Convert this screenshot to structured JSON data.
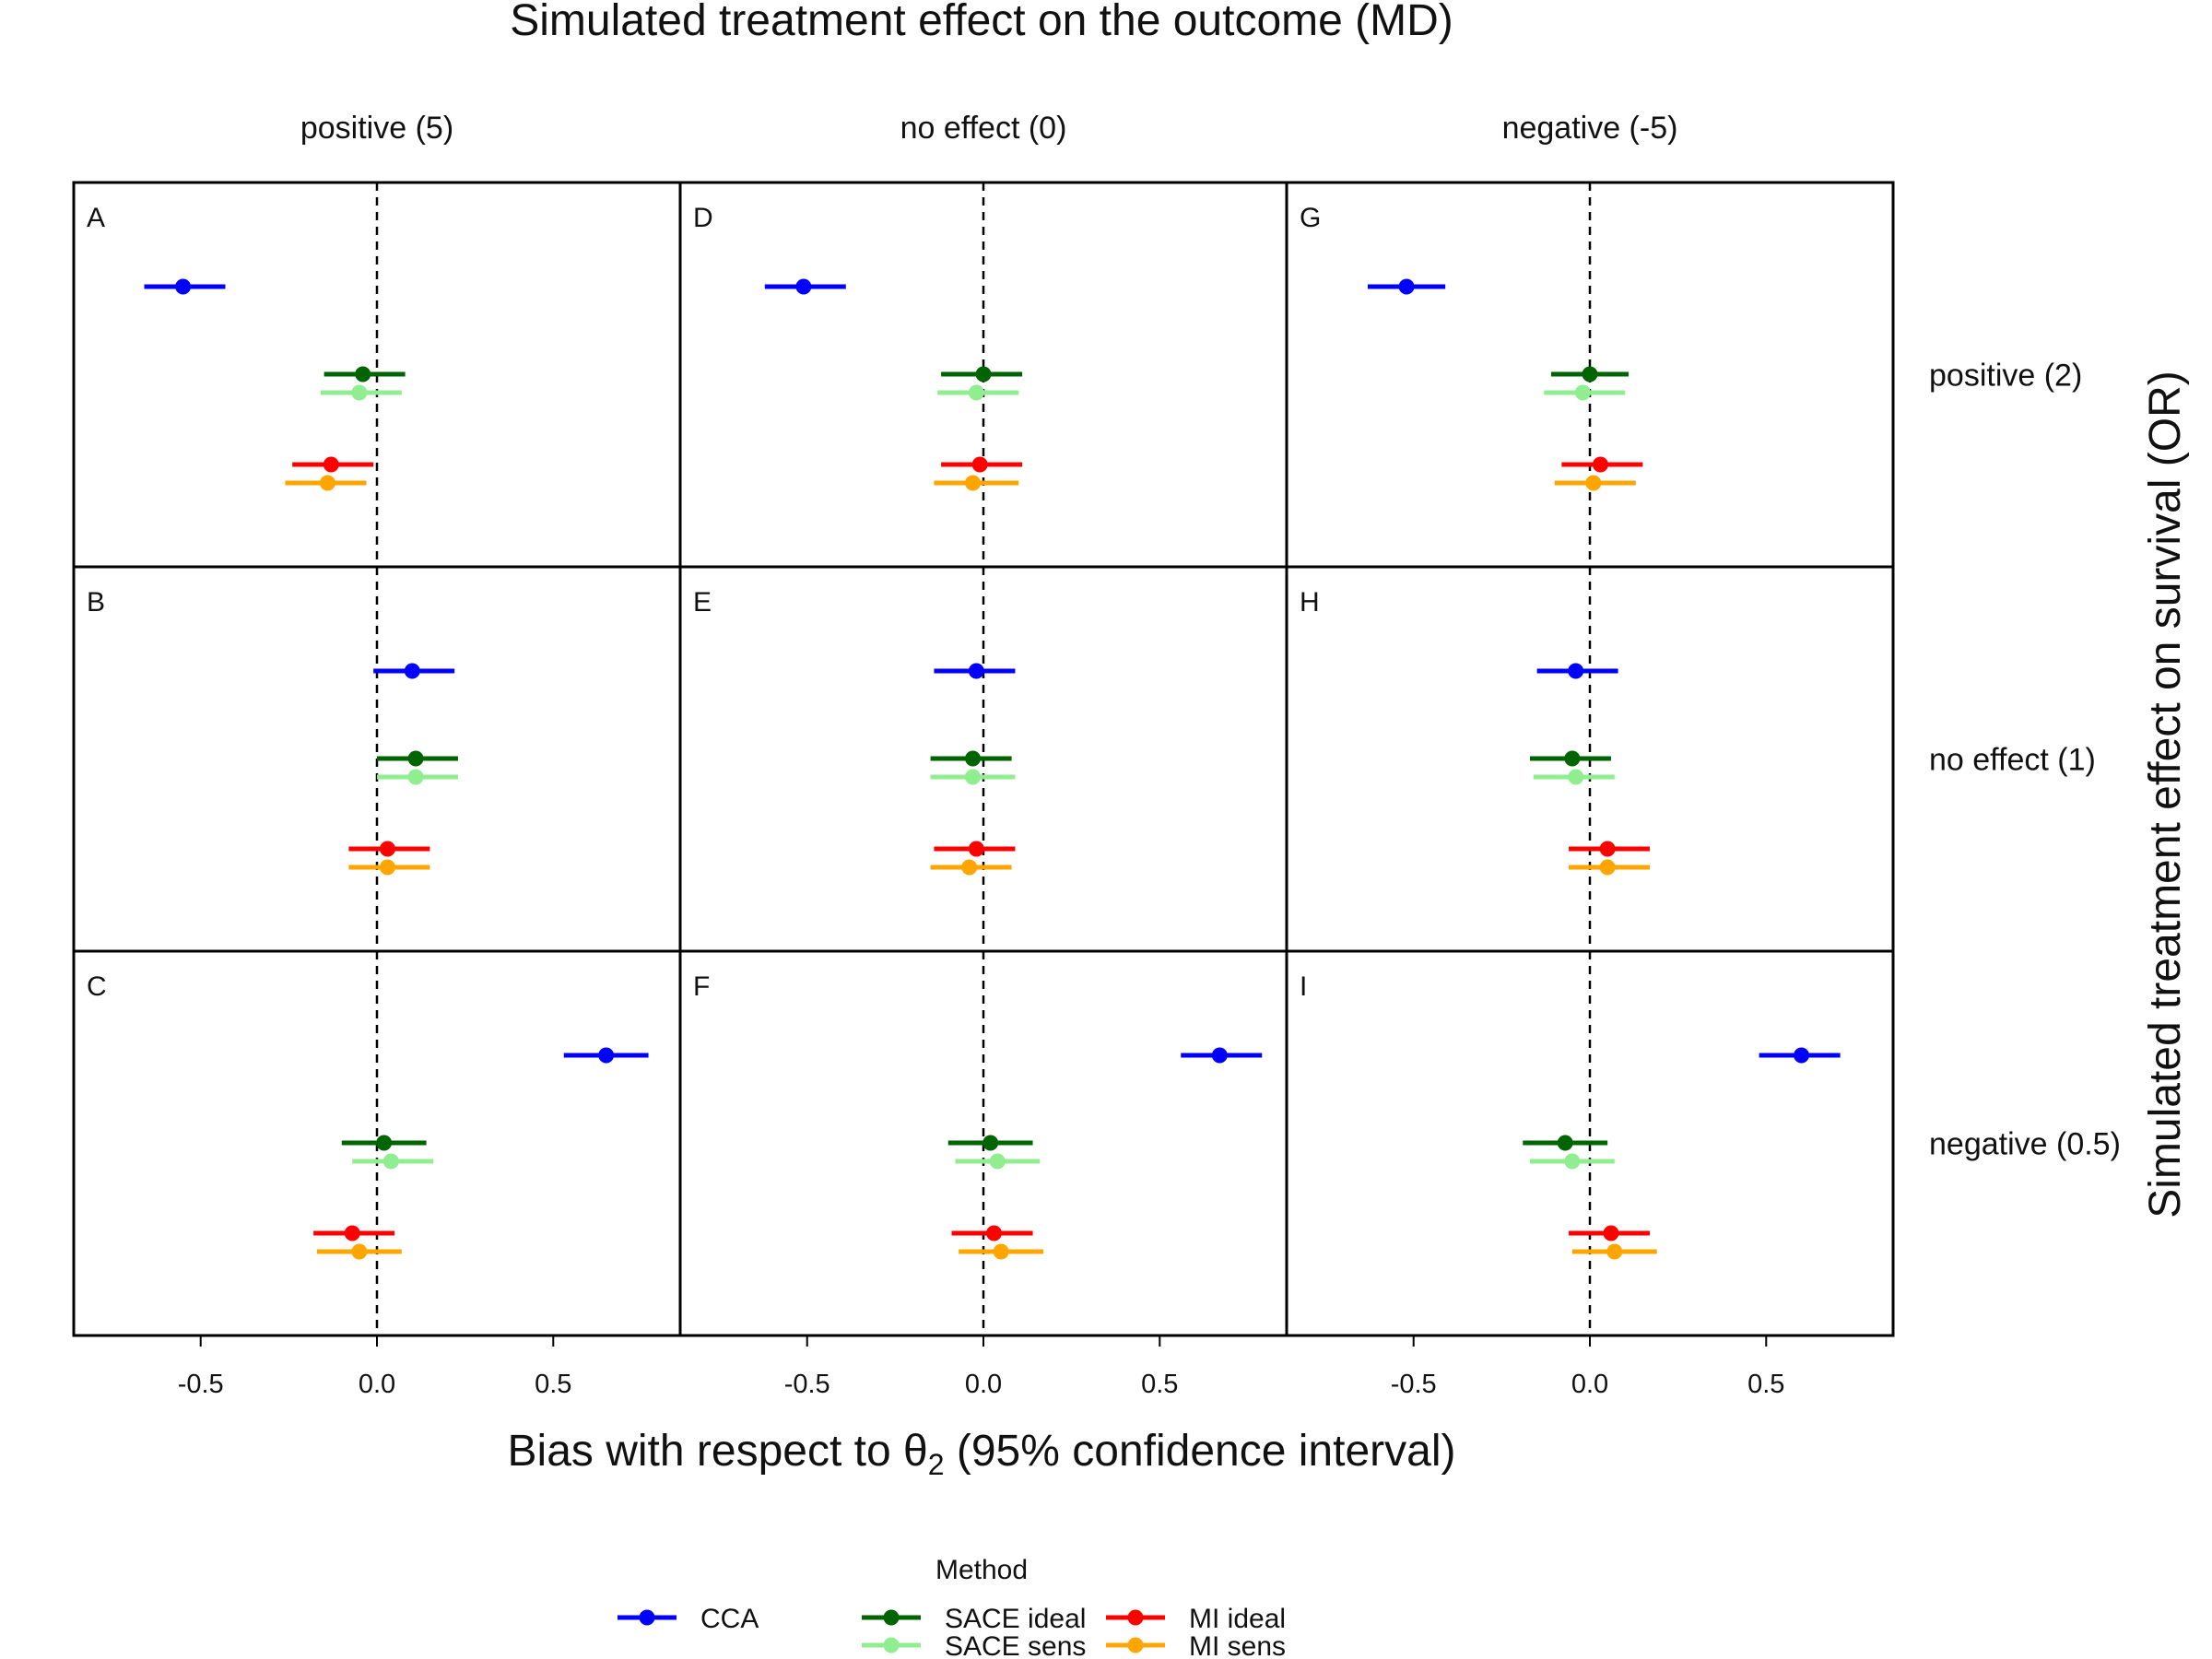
{
  "chart_data": {
    "type": "forest",
    "title": "Simulated treatment effect on the outcome (MD)",
    "xlabel_prefix": "Bias with respect to θ",
    "xlabel_subscript": "2",
    "xlabel_suffix": " (95% confidence interval)",
    "ylabel": "Simulated treatment effect on survival (OR)",
    "columns": [
      "positive (5)",
      "no effect (0)",
      "negative (-5)"
    ],
    "rows": [
      "positive (2)",
      "no effect (1)",
      "negative (0.5)"
    ],
    "xlim": [
      -0.86,
      0.86
    ],
    "xticks": [
      -0.5,
      0.0,
      0.5
    ],
    "xtick_labels": [
      "-0.5",
      "0.0",
      "0.5"
    ],
    "reference_line": 0,
    "legend": {
      "title": "Method",
      "items": [
        {
          "label": "CCA",
          "color": "#0000ff"
        },
        {
          "label": "SACE ideal",
          "color": "#006400"
        },
        {
          "label": "SACE sens",
          "color": "#90ee90"
        },
        {
          "label": "MI ideal",
          "color": "#ff0000"
        },
        {
          "label": "MI sens",
          "color": "#ffa500"
        }
      ]
    },
    "methods": [
      "CCA",
      "SACE ideal",
      "SACE sens",
      "MI ideal",
      "MI sens"
    ],
    "colors": {
      "CCA": "#0000ff",
      "SACE ideal": "#006400",
      "SACE sens": "#90ee90",
      "MI ideal": "#ff0000",
      "MI sens": "#ffa500"
    },
    "panels": [
      {
        "id": "A",
        "row": 0,
        "col": 0,
        "estimates": [
          {
            "method": "CCA",
            "est": -0.55,
            "lo": -0.66,
            "hi": -0.43
          },
          {
            "method": "SACE ideal",
            "est": -0.04,
            "lo": -0.15,
            "hi": 0.08
          },
          {
            "method": "SACE sens",
            "est": -0.05,
            "lo": -0.16,
            "hi": 0.07
          },
          {
            "method": "MI ideal",
            "est": -0.13,
            "lo": -0.24,
            "hi": -0.01
          },
          {
            "method": "MI sens",
            "est": -0.14,
            "lo": -0.26,
            "hi": -0.03
          }
        ]
      },
      {
        "id": "D",
        "row": 0,
        "col": 1,
        "estimates": [
          {
            "method": "CCA",
            "est": -0.51,
            "lo": -0.62,
            "hi": -0.39
          },
          {
            "method": "SACE ideal",
            "est": 0.0,
            "lo": -0.12,
            "hi": 0.11
          },
          {
            "method": "SACE sens",
            "est": -0.02,
            "lo": -0.13,
            "hi": 0.1
          },
          {
            "method": "MI ideal",
            "est": -0.01,
            "lo": -0.12,
            "hi": 0.11
          },
          {
            "method": "MI sens",
            "est": -0.03,
            "lo": -0.14,
            "hi": 0.1
          }
        ]
      },
      {
        "id": "G",
        "row": 0,
        "col": 2,
        "estimates": [
          {
            "method": "CCA",
            "est": -0.52,
            "lo": -0.63,
            "hi": -0.41
          },
          {
            "method": "SACE ideal",
            "est": 0.0,
            "lo": -0.11,
            "hi": 0.11
          },
          {
            "method": "SACE sens",
            "est": -0.02,
            "lo": -0.13,
            "hi": 0.1
          },
          {
            "method": "MI ideal",
            "est": 0.03,
            "lo": -0.08,
            "hi": 0.15
          },
          {
            "method": "MI sens",
            "est": 0.01,
            "lo": -0.1,
            "hi": 0.13
          }
        ]
      },
      {
        "id": "B",
        "row": 1,
        "col": 0,
        "estimates": [
          {
            "method": "CCA",
            "est": 0.1,
            "lo": -0.01,
            "hi": 0.22
          },
          {
            "method": "SACE ideal",
            "est": 0.11,
            "lo": 0.0,
            "hi": 0.23
          },
          {
            "method": "SACE sens",
            "est": 0.11,
            "lo": 0.0,
            "hi": 0.23
          },
          {
            "method": "MI ideal",
            "est": 0.03,
            "lo": -0.08,
            "hi": 0.15
          },
          {
            "method": "MI sens",
            "est": 0.03,
            "lo": -0.08,
            "hi": 0.15
          }
        ]
      },
      {
        "id": "E",
        "row": 1,
        "col": 1,
        "estimates": [
          {
            "method": "CCA",
            "est": -0.02,
            "lo": -0.14,
            "hi": 0.09
          },
          {
            "method": "SACE ideal",
            "est": -0.03,
            "lo": -0.15,
            "hi": 0.08
          },
          {
            "method": "SACE sens",
            "est": -0.03,
            "lo": -0.15,
            "hi": 0.09
          },
          {
            "method": "MI ideal",
            "est": -0.02,
            "lo": -0.14,
            "hi": 0.09
          },
          {
            "method": "MI sens",
            "est": -0.04,
            "lo": -0.15,
            "hi": 0.08
          }
        ]
      },
      {
        "id": "H",
        "row": 1,
        "col": 2,
        "estimates": [
          {
            "method": "CCA",
            "est": -0.04,
            "lo": -0.15,
            "hi": 0.08
          },
          {
            "method": "SACE ideal",
            "est": -0.05,
            "lo": -0.17,
            "hi": 0.06
          },
          {
            "method": "SACE sens",
            "est": -0.04,
            "lo": -0.16,
            "hi": 0.07
          },
          {
            "method": "MI ideal",
            "est": 0.05,
            "lo": -0.06,
            "hi": 0.17
          },
          {
            "method": "MI sens",
            "est": 0.05,
            "lo": -0.06,
            "hi": 0.17
          }
        ]
      },
      {
        "id": "C",
        "row": 2,
        "col": 0,
        "estimates": [
          {
            "method": "CCA",
            "est": 0.65,
            "lo": 0.53,
            "hi": 0.77
          },
          {
            "method": "SACE ideal",
            "est": 0.02,
            "lo": -0.1,
            "hi": 0.14
          },
          {
            "method": "SACE sens",
            "est": 0.04,
            "lo": -0.07,
            "hi": 0.16
          },
          {
            "method": "MI ideal",
            "est": -0.07,
            "lo": -0.18,
            "hi": 0.05
          },
          {
            "method": "MI sens",
            "est": -0.05,
            "lo": -0.17,
            "hi": 0.07
          }
        ]
      },
      {
        "id": "F",
        "row": 2,
        "col": 1,
        "estimates": [
          {
            "method": "CCA",
            "est": 0.67,
            "lo": 0.56,
            "hi": 0.79
          },
          {
            "method": "SACE ideal",
            "est": 0.02,
            "lo": -0.1,
            "hi": 0.14
          },
          {
            "method": "SACE sens",
            "est": 0.04,
            "lo": -0.08,
            "hi": 0.16
          },
          {
            "method": "MI ideal",
            "est": 0.03,
            "lo": -0.09,
            "hi": 0.14
          },
          {
            "method": "MI sens",
            "est": 0.05,
            "lo": -0.07,
            "hi": 0.17
          }
        ]
      },
      {
        "id": "I",
        "row": 2,
        "col": 2,
        "estimates": [
          {
            "method": "CCA",
            "est": 0.6,
            "lo": 0.48,
            "hi": 0.71
          },
          {
            "method": "SACE ideal",
            "est": -0.07,
            "lo": -0.19,
            "hi": 0.05
          },
          {
            "method": "SACE sens",
            "est": -0.05,
            "lo": -0.17,
            "hi": 0.07
          },
          {
            "method": "MI ideal",
            "est": 0.06,
            "lo": -0.06,
            "hi": 0.17
          },
          {
            "method": "MI sens",
            "est": 0.07,
            "lo": -0.05,
            "hi": 0.19
          }
        ]
      }
    ]
  }
}
